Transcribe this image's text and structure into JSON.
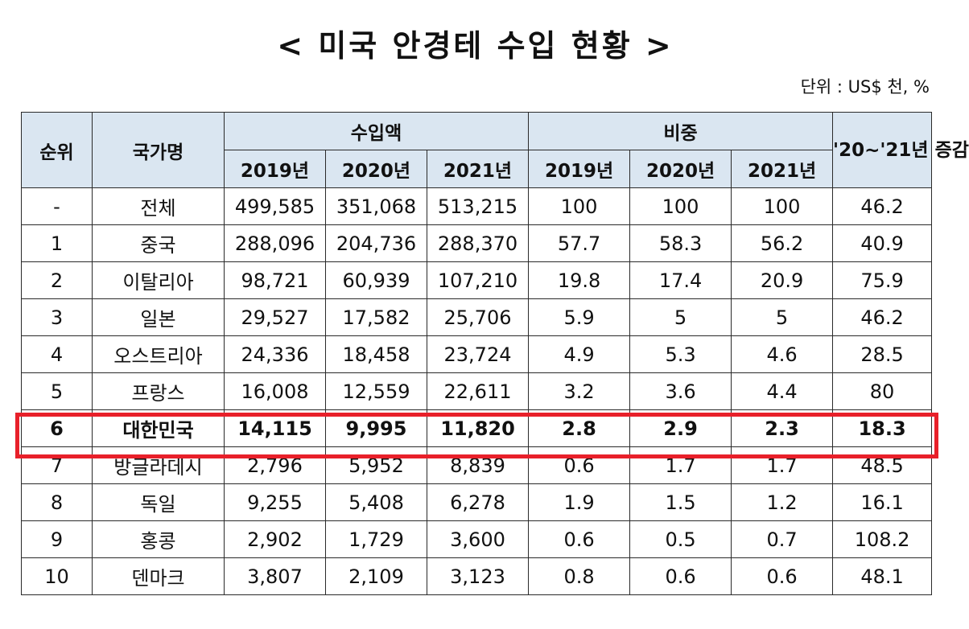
{
  "title": "< 미국 안경테 수입 현황 >",
  "unit": "단위 : US$ 천, %",
  "table": {
    "headers": {
      "rank": "순위",
      "country": "국가명",
      "import_amount": "수입액",
      "share": "비중",
      "change": "'20~'21년 증감",
      "years": [
        "2019년",
        "2020년",
        "2021년"
      ]
    },
    "rows": [
      {
        "rank": "-",
        "country": "전체",
        "amount": [
          "499,585",
          "351,068",
          "513,215"
        ],
        "share": [
          "100",
          "100",
          "100"
        ],
        "change": "46.2"
      },
      {
        "rank": "1",
        "country": "중국",
        "amount": [
          "288,096",
          "204,736",
          "288,370"
        ],
        "share": [
          "57.7",
          "58.3",
          "56.2"
        ],
        "change": "40.9"
      },
      {
        "rank": "2",
        "country": "이탈리아",
        "amount": [
          "98,721",
          "60,939",
          "107,210"
        ],
        "share": [
          "19.8",
          "17.4",
          "20.9"
        ],
        "change": "75.9"
      },
      {
        "rank": "3",
        "country": "일본",
        "amount": [
          "29,527",
          "17,582",
          "25,706"
        ],
        "share": [
          "5.9",
          "5",
          "5"
        ],
        "change": "46.2"
      },
      {
        "rank": "4",
        "country": "오스트리아",
        "amount": [
          "24,336",
          "18,458",
          "23,724"
        ],
        "share": [
          "4.9",
          "5.3",
          "4.6"
        ],
        "change": "28.5"
      },
      {
        "rank": "5",
        "country": "프랑스",
        "amount": [
          "16,008",
          "12,559",
          "22,611"
        ],
        "share": [
          "3.2",
          "3.6",
          "4.4"
        ],
        "change": "80"
      },
      {
        "rank": "6",
        "country": "대한민국",
        "amount": [
          "14,115",
          "9,995",
          "11,820"
        ],
        "share": [
          "2.8",
          "2.9",
          "2.3"
        ],
        "change": "18.3",
        "highlight": true
      },
      {
        "rank": "7",
        "country": "방글라데시",
        "amount": [
          "2,796",
          "5,952",
          "8,839"
        ],
        "share": [
          "0.6",
          "1.7",
          "1.7"
        ],
        "change": "48.5"
      },
      {
        "rank": "8",
        "country": "독일",
        "amount": [
          "9,255",
          "5,408",
          "6,278"
        ],
        "share": [
          "1.9",
          "1.5",
          "1.2"
        ],
        "change": "16.1"
      },
      {
        "rank": "9",
        "country": "홍콩",
        "amount": [
          "2,902",
          "1,729",
          "3,600"
        ],
        "share": [
          "0.6",
          "0.5",
          "0.7"
        ],
        "change": "108.2"
      },
      {
        "rank": "10",
        "country": "덴마크",
        "amount": [
          "3,807",
          "2,109",
          "3,123"
        ],
        "share": [
          "0.8",
          "0.6",
          "0.6"
        ],
        "change": "48.1"
      }
    ]
  },
  "colors": {
    "header_bg": "#dae6f1",
    "highlight_border": "#e8202a",
    "grid": "#2a2a2a"
  }
}
